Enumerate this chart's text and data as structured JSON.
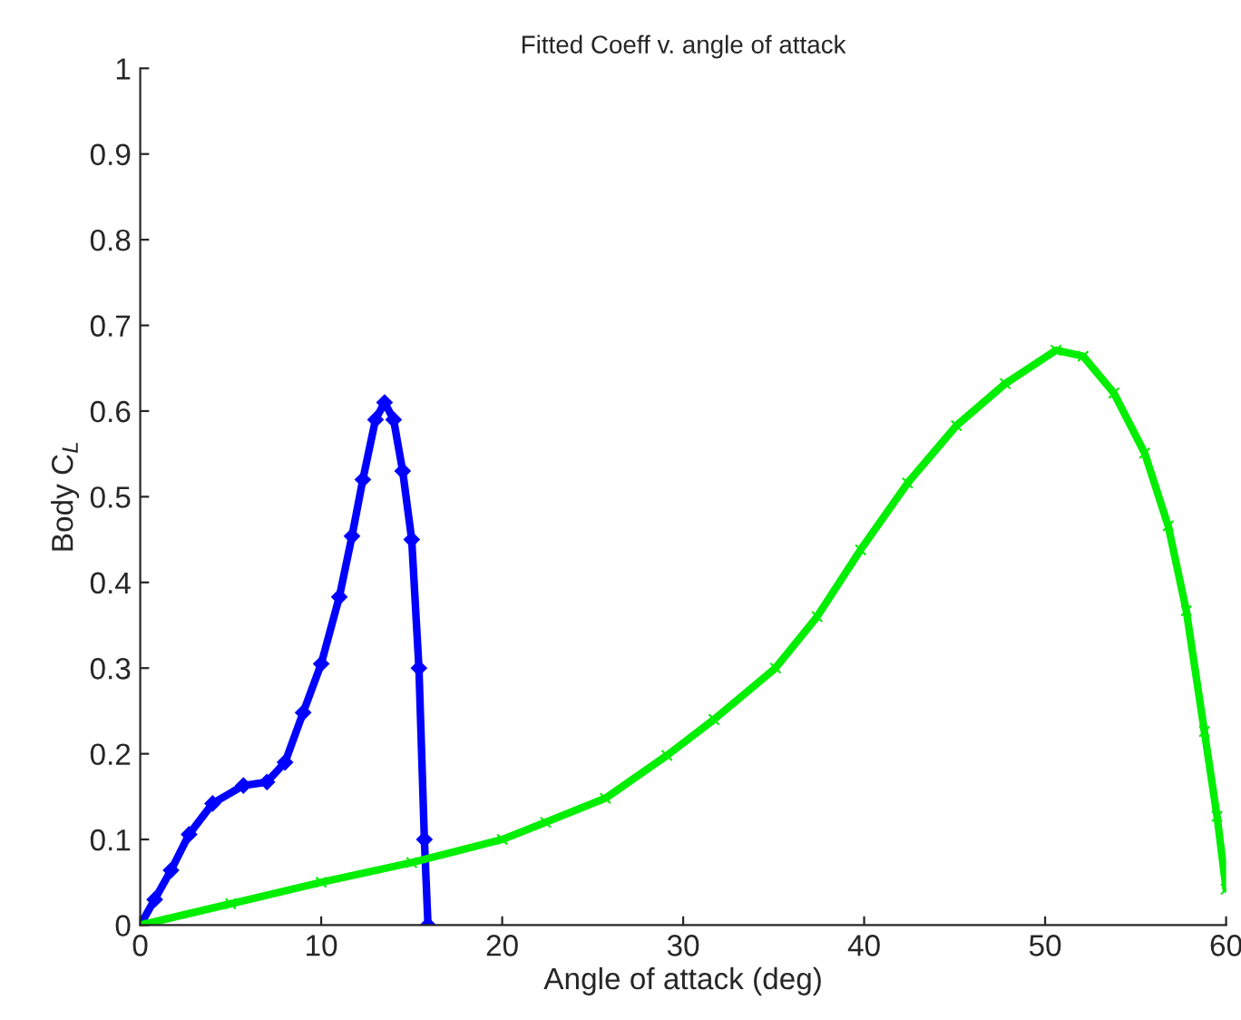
{
  "chart_data": {
    "type": "line",
    "title": "Fitted Coeff v. angle of attack",
    "xlabel": "Angle of attack (deg)",
    "ylabel": "Body C$_{L}$",
    "xlim": [
      0,
      60
    ],
    "ylim": [
      0,
      1
    ],
    "xticks": [
      0,
      10,
      20,
      30,
      40,
      50,
      60
    ],
    "yticks": [
      0,
      0.1,
      0.2,
      0.3,
      0.4,
      0.5,
      0.6,
      0.7,
      0.8,
      0.9,
      1
    ],
    "grid": false,
    "legend": false,
    "series": [
      {
        "color": "#0000ff",
        "marker": "diamond",
        "x": [
          0,
          0.8,
          1.7,
          2.7,
          4,
          5.7,
          7,
          8,
          9,
          10,
          11,
          11.7,
          12.3,
          13,
          13.5,
          14,
          14.5,
          15,
          15.4,
          15.7,
          15.9
        ],
        "values": [
          0,
          0.03,
          0.064,
          0.106,
          0.142,
          0.163,
          0.167,
          0.19,
          0.248,
          0.305,
          0.383,
          0.454,
          0.52,
          0.59,
          0.61,
          0.59,
          0.53,
          0.45,
          0.3,
          0.1,
          0
        ]
      },
      {
        "color": "#00ee00",
        "marker": "cross",
        "x": [
          0,
          5,
          10,
          15,
          20,
          22.4,
          25.7,
          29.1,
          31.7,
          35.1,
          37.4,
          39.8,
          42.4,
          45.1,
          47.8,
          50.6,
          52.1,
          53.8,
          55.5,
          56.8,
          57.8,
          58.8,
          59.5,
          60
        ],
        "values": [
          0,
          0.025,
          0.05,
          0.073,
          0.1,
          0.12,
          0.148,
          0.198,
          0.24,
          0.3,
          0.36,
          0.438,
          0.516,
          0.583,
          0.632,
          0.671,
          0.664,
          0.621,
          0.551,
          0.466,
          0.367,
          0.226,
          0.127,
          0.042
        ]
      }
    ]
  }
}
